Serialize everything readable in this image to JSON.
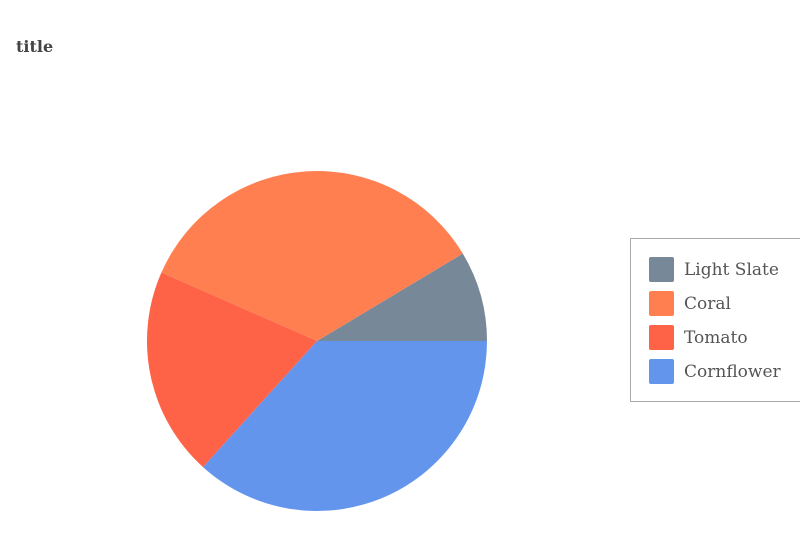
{
  "chart_data": {
    "type": "pie",
    "title": "title",
    "start_angle": "3 o'clock, counterclockwise",
    "legend_position": "right",
    "slices": [
      {
        "label": "Light Slate",
        "value": 8.6,
        "color": "#778899"
      },
      {
        "label": "Coral",
        "value": 34.8,
        "color": "#FF7F50"
      },
      {
        "label": "Tomato",
        "value": 19.9,
        "color": "#FF6347"
      },
      {
        "label": "Cornflower",
        "value": 36.7,
        "color": "#6495ED"
      }
    ]
  }
}
